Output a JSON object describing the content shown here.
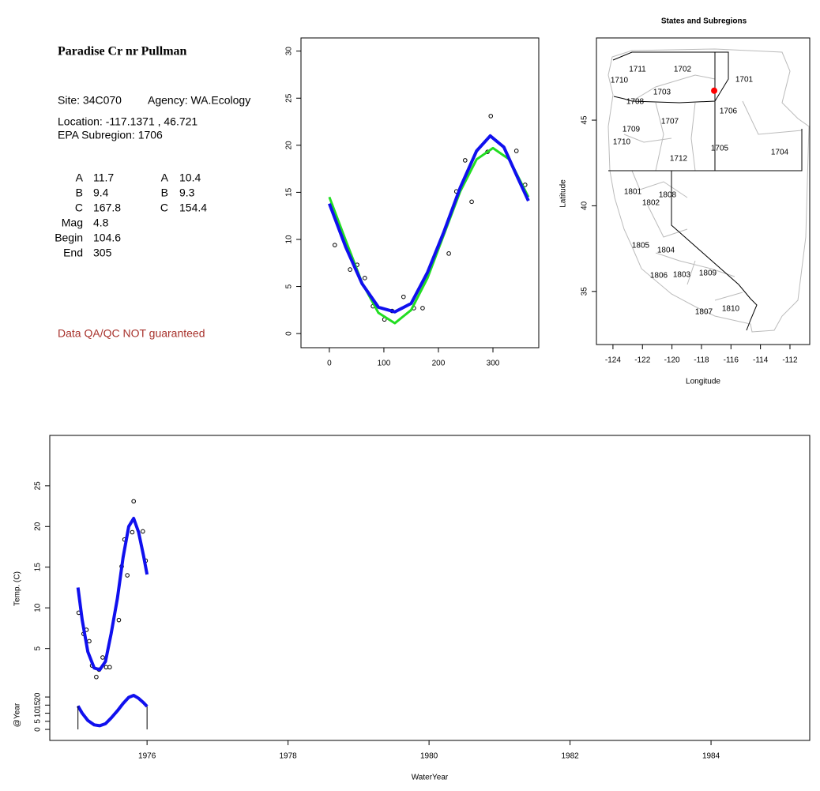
{
  "site_info": {
    "title": "Paradise Cr nr Pullman",
    "site": "Site: 34C070",
    "agency": "Agency: WA.Ecology",
    "location": "Location: -117.1371 , 46.721",
    "subregion": "EPA Subregion: 1706",
    "params": [
      [
        "A",
        "11.7",
        "A",
        "10.4"
      ],
      [
        "B",
        "9.4",
        "B",
        "9.3"
      ],
      [
        "C",
        "167.8",
        "C",
        "154.4"
      ],
      [
        "Mag",
        "4.8"
      ],
      [
        "Begin",
        "104.6"
      ],
      [
        "End",
        "305"
      ]
    ],
    "disclaimer": "Data QA/QC NOT guaranteed"
  },
  "chart_data": [
    {
      "type": "scatter",
      "xlim": [
        -52,
        384
      ],
      "ylim": [
        -1.5,
        31.4
      ],
      "xticks": [
        0,
        100,
        200,
        300
      ],
      "yticks": [
        0,
        5,
        10,
        15,
        20,
        25,
        30
      ],
      "series": [
        {
          "style": "points",
          "color": "#000000",
          "x": [
            10,
            38,
            51,
            65,
            80,
            101,
            115,
            136,
            155,
            171,
            219,
            233,
            249,
            261,
            290,
            296,
            343,
            359
          ],
          "values": [
            9.4,
            6.8,
            7.3,
            5.9,
            2.9,
            1.5,
            2.4,
            3.9,
            2.7,
            2.7,
            8.5,
            15.1,
            18.4,
            14.0,
            19.3,
            23.1,
            19.4,
            15.8
          ]
        },
        {
          "style": "line",
          "color": "#22dd22",
          "x": [
            0,
            30,
            60,
            90,
            120,
            150,
            180,
            210,
            240,
            270,
            300,
            330,
            365
          ],
          "values": [
            14.5,
            9.9,
            5.4,
            2.2,
            1.1,
            2.5,
            5.9,
            10.5,
            15.1,
            18.5,
            19.7,
            18.5,
            14.5
          ]
        },
        {
          "style": "line",
          "color": "#1010ee",
          "x": [
            0,
            30,
            60,
            90,
            120,
            150,
            180,
            210,
            240,
            270,
            295,
            320,
            345,
            365
          ],
          "values": [
            13.8,
            9.2,
            5.3,
            2.8,
            2.3,
            3.2,
            6.5,
            10.8,
            15.5,
            19.4,
            21.0,
            19.8,
            16.6,
            14.1
          ]
        }
      ]
    },
    {
      "type": "map",
      "title": "States and Subregions",
      "xlabel": "Longitude",
      "ylabel": "Latitude",
      "xlim": [
        -125.12,
        -110.66
      ],
      "ylim": [
        31.9,
        49.8
      ],
      "xticks": [
        -124,
        -122,
        -120,
        -118,
        -116,
        -114,
        -112
      ],
      "yticks": [
        35,
        40,
        45
      ],
      "regions": [
        "1711",
        "1702",
        "1701",
        "1710",
        "1703",
        "1708",
        "1706",
        "1707",
        "1709",
        "1710",
        "1705",
        "1712",
        "1704",
        "1801",
        "1808",
        "1802",
        "1805",
        "1804",
        "1806",
        "1803",
        "1809",
        "1807",
        "1810"
      ],
      "series": [
        {
          "style": "dot",
          "color": "#ff0000",
          "x": [
            -117.1371
          ],
          "values": [
            46.721
          ]
        }
      ]
    },
    {
      "type": "line",
      "xlabel": "WaterYear",
      "ylabel": "Temp. (C)",
      "xlim": [
        1974.62,
        1985.4
      ],
      "ylim": [
        -6.3,
        31.2
      ],
      "xticks": [
        1976,
        1978,
        1980,
        1982,
        1984
      ],
      "yticks": [
        5,
        10,
        15,
        20,
        25
      ],
      "series": [
        {
          "style": "points",
          "color": "#000000",
          "x": [
            1975.03,
            1975.1,
            1975.14,
            1975.18,
            1975.22,
            1975.28,
            1975.32,
            1975.37,
            1975.42,
            1975.47,
            1975.6,
            1975.64,
            1975.68,
            1975.72,
            1975.79,
            1975.81,
            1975.94,
            1975.98
          ],
          "values": [
            9.4,
            6.8,
            7.3,
            5.9,
            2.9,
            1.5,
            2.4,
            3.9,
            2.7,
            2.7,
            8.5,
            15.1,
            18.4,
            14.0,
            19.3,
            23.1,
            19.4,
            15.8
          ]
        },
        {
          "style": "line",
          "color": "#1010ee",
          "x": [
            1975.02,
            1975.08,
            1975.16,
            1975.25,
            1975.33,
            1975.41,
            1975.49,
            1975.58,
            1975.66,
            1975.74,
            1975.81,
            1975.88,
            1975.95,
            1976.0
          ],
          "values": [
            12.5,
            8.5,
            4.6,
            2.6,
            2.4,
            3.4,
            6.8,
            11.2,
            16.2,
            20.0,
            21.0,
            19.3,
            16.4,
            14.1
          ]
        }
      ]
    },
    {
      "type": "line",
      "ylabel": "@Year",
      "xlim": [
        1974.62,
        1985.4
      ],
      "ylim": [
        -6.8,
        181.5
      ],
      "yticks": [
        0,
        5,
        10,
        15,
        20
      ],
      "series": [
        {
          "style": "line",
          "color": "#1010ee",
          "drops": true,
          "x": [
            1975.02,
            1975.08,
            1975.16,
            1975.25,
            1975.33,
            1975.41,
            1975.49,
            1975.58,
            1975.66,
            1975.74,
            1975.81,
            1975.88,
            1975.95,
            1976.0
          ],
          "values": [
            14.5,
            10.0,
            5.5,
            2.8,
            2.3,
            3.5,
            7.0,
            11.5,
            16.0,
            19.8,
            21.0,
            19.2,
            16.5,
            14.2
          ]
        }
      ]
    }
  ]
}
